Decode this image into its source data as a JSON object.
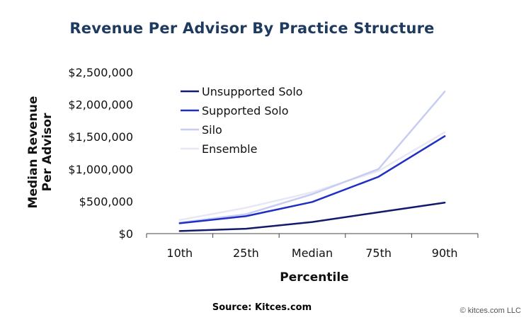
{
  "chart_data": {
    "type": "line",
    "title": "Revenue Per Advisor By Practice Structure",
    "xlabel": "Percentile",
    "ylabel": "Median Revenue Per Advisor",
    "ylabel_lines": [
      "Median Revenue",
      "Per Advisor"
    ],
    "categories": [
      "10th",
      "25th",
      "Median",
      "75th",
      "90th"
    ],
    "y_ticks": [
      0,
      500000,
      1000000,
      1500000,
      2000000,
      2500000
    ],
    "y_tick_labels": [
      "$0",
      "$500,000",
      "$1,000,000",
      "$1,500,000",
      "$2,000,000",
      "$2,500,000"
    ],
    "ylim": [
      0,
      2500000
    ],
    "grid": false,
    "legend": "top-left",
    "series": [
      {
        "name": "Unsupported Solo",
        "color": "#141a6b",
        "values": [
          40000,
          75000,
          180000,
          330000,
          480000
        ]
      },
      {
        "name": "Supported Solo",
        "color": "#1f2fc4",
        "values": [
          160000,
          270000,
          490000,
          880000,
          1510000
        ]
      },
      {
        "name": "Silo",
        "color": "#c7ccf2",
        "values": [
          170000,
          300000,
          610000,
          1000000,
          2200000
        ]
      },
      {
        "name": "Ensemble",
        "color": "#e7e8f6",
        "values": [
          210000,
          400000,
          640000,
          970000,
          1570000
        ]
      }
    ]
  },
  "footer": {
    "source": "Source: Kitces.com",
    "copyright": "© kitces.com LLC"
  }
}
